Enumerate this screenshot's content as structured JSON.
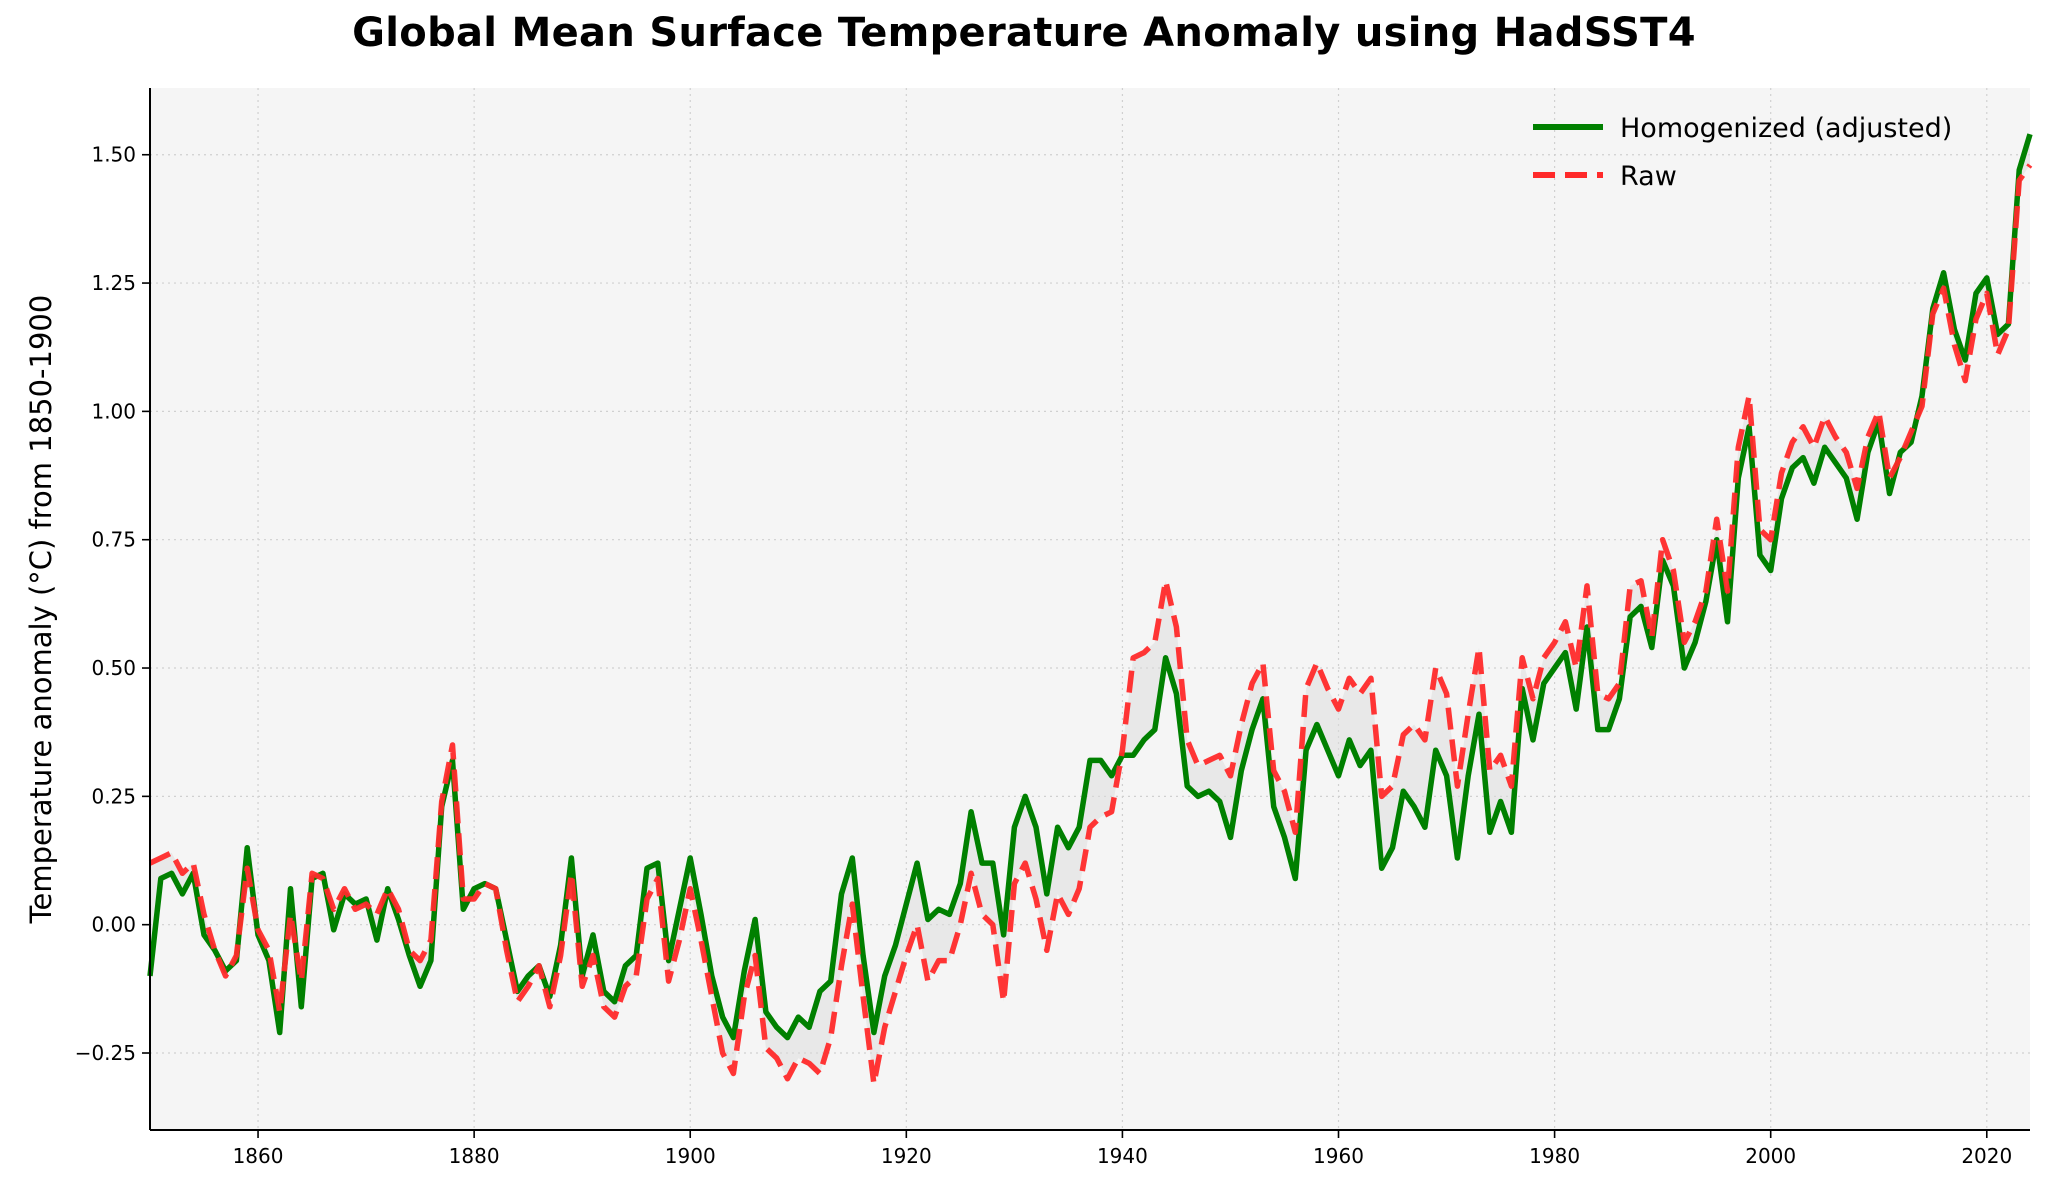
{
  "chart_data": {
    "type": "line",
    "title": "Global Mean Surface Temperature Anomaly using HadSST4",
    "xlabel": "",
    "ylabel": "Temperature anomaly (°C) from 1850-1900",
    "xlim": [
      1850,
      2024
    ],
    "ylim": [
      -0.4,
      1.63
    ],
    "x_ticks": [
      1860,
      1880,
      1900,
      1920,
      1940,
      1960,
      1980,
      2000,
      2020
    ],
    "y_ticks": [
      -0.25,
      0.0,
      0.25,
      0.5,
      0.75,
      1.0,
      1.25,
      1.5
    ],
    "y_tick_labels": [
      "−0.25",
      "0.00",
      "0.25",
      "0.50",
      "0.75",
      "1.00",
      "1.25",
      "1.50"
    ],
    "grid": true,
    "legend_position": "top-right",
    "fill_between": true,
    "x": [
      1850,
      1851,
      1852,
      1853,
      1854,
      1855,
      1856,
      1857,
      1858,
      1859,
      1860,
      1861,
      1862,
      1863,
      1864,
      1865,
      1866,
      1867,
      1868,
      1869,
      1870,
      1871,
      1872,
      1873,
      1874,
      1875,
      1876,
      1877,
      1878,
      1879,
      1880,
      1881,
      1882,
      1883,
      1884,
      1885,
      1886,
      1887,
      1888,
      1889,
      1890,
      1891,
      1892,
      1893,
      1894,
      1895,
      1896,
      1897,
      1898,
      1899,
      1900,
      1901,
      1902,
      1903,
      1904,
      1905,
      1906,
      1907,
      1908,
      1909,
      1910,
      1911,
      1912,
      1913,
      1914,
      1915,
      1916,
      1917,
      1918,
      1919,
      1920,
      1921,
      1922,
      1923,
      1924,
      1925,
      1926,
      1927,
      1928,
      1929,
      1930,
      1931,
      1932,
      1933,
      1934,
      1935,
      1936,
      1937,
      1938,
      1939,
      1940,
      1941,
      1942,
      1943,
      1944,
      1945,
      1946,
      1947,
      1948,
      1949,
      1950,
      1951,
      1952,
      1953,
      1954,
      1955,
      1956,
      1957,
      1958,
      1959,
      1960,
      1961,
      1962,
      1963,
      1964,
      1965,
      1966,
      1967,
      1968,
      1969,
      1970,
      1971,
      1972,
      1973,
      1974,
      1975,
      1976,
      1977,
      1978,
      1979,
      1980,
      1981,
      1982,
      1983,
      1984,
      1985,
      1986,
      1987,
      1988,
      1989,
      1990,
      1991,
      1992,
      1993,
      1994,
      1995,
      1996,
      1997,
      1998,
      1999,
      2000,
      2001,
      2002,
      2003,
      2004,
      2005,
      2006,
      2007,
      2008,
      2009,
      2010,
      2011,
      2012,
      2013,
      2014,
      2015,
      2016,
      2017,
      2018,
      2019,
      2020,
      2021,
      2022,
      2023,
      2024
    ],
    "series": [
      {
        "name": "Homogenized (adjusted)",
        "color": "#008000",
        "style": "solid",
        "values": [
          -0.1,
          0.09,
          0.1,
          0.06,
          0.1,
          -0.02,
          -0.05,
          -0.09,
          -0.07,
          0.15,
          -0.02,
          -0.07,
          -0.21,
          0.07,
          -0.16,
          0.09,
          0.1,
          -0.01,
          0.06,
          0.04,
          0.05,
          -0.03,
          0.07,
          0.01,
          -0.06,
          -0.12,
          -0.07,
          0.23,
          0.32,
          0.03,
          0.07,
          0.08,
          0.07,
          -0.03,
          -0.13,
          -0.1,
          -0.08,
          -0.14,
          -0.04,
          0.13,
          -0.1,
          -0.02,
          -0.13,
          -0.15,
          -0.08,
          -0.06,
          0.11,
          0.12,
          -0.07,
          0.03,
          0.13,
          0.02,
          -0.1,
          -0.18,
          -0.22,
          -0.09,
          0.01,
          -0.17,
          -0.2,
          -0.22,
          -0.18,
          -0.2,
          -0.13,
          -0.11,
          0.06,
          0.13,
          -0.06,
          -0.21,
          -0.1,
          -0.04,
          0.04,
          0.12,
          0.01,
          0.03,
          0.02,
          0.08,
          0.22,
          0.12,
          0.12,
          -0.02,
          0.19,
          0.25,
          0.19,
          0.06,
          0.19,
          0.15,
          0.19,
          0.32,
          0.32,
          0.29,
          0.33,
          0.33,
          0.36,
          0.38,
          0.52,
          0.45,
          0.27,
          0.25,
          0.26,
          0.24,
          0.17,
          0.3,
          0.38,
          0.44,
          0.23,
          0.17,
          0.09,
          0.34,
          0.39,
          0.34,
          0.29,
          0.36,
          0.31,
          0.34,
          0.11,
          0.15,
          0.26,
          0.23,
          0.19,
          0.34,
          0.29,
          0.13,
          0.29,
          0.41,
          0.18,
          0.24,
          0.18,
          0.46,
          0.36,
          0.47,
          0.5,
          0.53,
          0.42,
          0.58,
          0.38,
          0.38,
          0.44,
          0.6,
          0.62,
          0.54,
          0.71,
          0.66,
          0.5,
          0.55,
          0.63,
          0.75,
          0.59,
          0.87,
          0.97,
          0.72,
          0.69,
          0.83,
          0.89,
          0.91,
          0.86,
          0.93,
          0.9,
          0.87,
          0.79,
          0.92,
          0.98,
          0.84,
          0.92,
          0.94,
          1.03,
          1.2,
          1.27,
          1.16,
          1.1,
          1.23,
          1.26,
          1.15,
          1.17,
          1.47,
          1.54
        ]
      },
      {
        "name": "Raw",
        "color": "#ff2a2a",
        "style": "dashed",
        "values": [
          0.12,
          0.13,
          0.14,
          0.1,
          0.12,
          0.02,
          -0.05,
          -0.1,
          -0.06,
          0.11,
          -0.01,
          -0.05,
          -0.17,
          0.02,
          -0.11,
          0.1,
          0.09,
          0.03,
          0.07,
          0.03,
          0.04,
          0.02,
          0.07,
          0.03,
          -0.05,
          -0.07,
          -0.03,
          0.24,
          0.35,
          0.05,
          0.05,
          0.08,
          0.07,
          -0.05,
          -0.15,
          -0.12,
          -0.08,
          -0.16,
          -0.06,
          0.1,
          -0.12,
          -0.06,
          -0.16,
          -0.18,
          -0.12,
          -0.1,
          0.05,
          0.09,
          -0.11,
          -0.03,
          0.07,
          -0.03,
          -0.14,
          -0.25,
          -0.29,
          -0.14,
          -0.06,
          -0.24,
          -0.26,
          -0.3,
          -0.26,
          -0.27,
          -0.29,
          -0.22,
          -0.08,
          0.04,
          -0.14,
          -0.31,
          -0.2,
          -0.13,
          -0.06,
          0.0,
          -0.11,
          -0.07,
          -0.07,
          0.0,
          0.1,
          0.02,
          0.0,
          -0.15,
          0.08,
          0.12,
          0.05,
          -0.05,
          0.06,
          0.02,
          0.07,
          0.19,
          0.21,
          0.22,
          0.34,
          0.52,
          0.53,
          0.55,
          0.67,
          0.58,
          0.36,
          0.31,
          0.32,
          0.33,
          0.29,
          0.39,
          0.47,
          0.51,
          0.3,
          0.26,
          0.18,
          0.46,
          0.51,
          0.46,
          0.42,
          0.48,
          0.45,
          0.48,
          0.25,
          0.27,
          0.37,
          0.39,
          0.36,
          0.5,
          0.45,
          0.27,
          0.41,
          0.54,
          0.3,
          0.33,
          0.27,
          0.52,
          0.44,
          0.52,
          0.55,
          0.59,
          0.5,
          0.66,
          0.45,
          0.44,
          0.47,
          0.66,
          0.67,
          0.56,
          0.75,
          0.69,
          0.55,
          0.59,
          0.65,
          0.79,
          0.65,
          0.93,
          1.03,
          0.77,
          0.75,
          0.88,
          0.94,
          0.97,
          0.93,
          0.99,
          0.95,
          0.92,
          0.85,
          0.95,
          1.0,
          0.87,
          0.91,
          0.96,
          1.01,
          1.19,
          1.24,
          1.13,
          1.06,
          1.18,
          1.23,
          1.11,
          1.16,
          1.45,
          1.48
        ]
      }
    ]
  }
}
